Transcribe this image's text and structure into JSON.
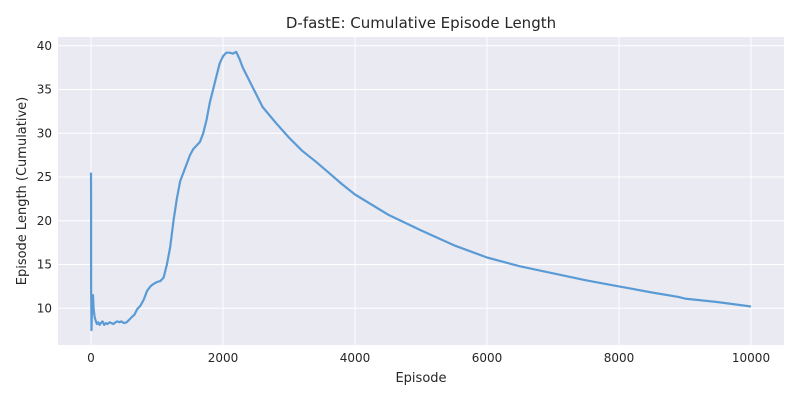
{
  "chart_data": {
    "type": "line",
    "title": "D-fastE: Cumulative Episode Length",
    "xlabel": "Episode",
    "ylabel": "Episode Length (Cumulative)",
    "xlim": [
      -500,
      10500
    ],
    "ylim": [
      5.8,
      41
    ],
    "xticks": [
      0,
      2000,
      4000,
      6000,
      8000,
      10000
    ],
    "yticks": [
      10,
      15,
      20,
      25,
      30,
      35,
      40
    ],
    "grid": true,
    "legend": "none",
    "colors": {
      "line": "#5a9bd5",
      "plot_bg": "#eaeaf2",
      "grid": "#ffffff"
    },
    "series": [
      {
        "x": [
          0,
          1,
          2,
          3,
          5,
          8,
          12,
          20,
          30,
          40,
          55,
          70,
          90,
          110,
          130,
          150,
          175,
          200,
          225,
          250,
          280,
          310,
          340,
          370,
          400,
          430,
          460,
          500,
          540,
          580,
          620,
          660,
          700,
          750,
          800,
          850,
          900,
          950,
          1000,
          1050,
          1100,
          1150,
          1200,
          1250,
          1300,
          1350,
          1400,
          1450,
          1500,
          1550,
          1600,
          1650,
          1700,
          1750,
          1800,
          1850,
          1900,
          1950,
          2000,
          2050,
          2100,
          2150,
          2200,
          2250,
          2300,
          2400,
          2500,
          2600,
          2800,
          3000,
          3200,
          3400,
          3600,
          3800,
          4000,
          4500,
          5000,
          5500,
          6000,
          6500,
          7000,
          7500,
          8000,
          8500,
          8900,
          9000,
          9500,
          10000
        ],
        "y": [
          25.5,
          22.0,
          13.0,
          11.5,
          10.5,
          7.5,
          9.0,
          10.8,
          11.5,
          10.0,
          9.0,
          8.6,
          8.2,
          8.4,
          8.1,
          8.3,
          8.5,
          8.1,
          8.3,
          8.2,
          8.4,
          8.3,
          8.2,
          8.4,
          8.5,
          8.4,
          8.5,
          8.3,
          8.4,
          8.7,
          9.0,
          9.3,
          9.9,
          10.3,
          11.0,
          12.0,
          12.5,
          12.8,
          13.0,
          13.1,
          13.5,
          15.0,
          17.0,
          20.0,
          22.5,
          24.5,
          25.5,
          26.5,
          27.5,
          28.2,
          28.6,
          29.0,
          30.0,
          31.5,
          33.5,
          35.0,
          36.5,
          38.0,
          38.8,
          39.2,
          39.2,
          39.1,
          39.3,
          38.5,
          37.5,
          36.0,
          34.5,
          33.0,
          31.2,
          29.5,
          28.0,
          26.8,
          25.5,
          24.2,
          23.0,
          20.7,
          18.9,
          17.2,
          15.8,
          14.8,
          14.0,
          13.2,
          12.5,
          11.8,
          11.3,
          11.1,
          10.7,
          10.2
        ]
      }
    ]
  }
}
